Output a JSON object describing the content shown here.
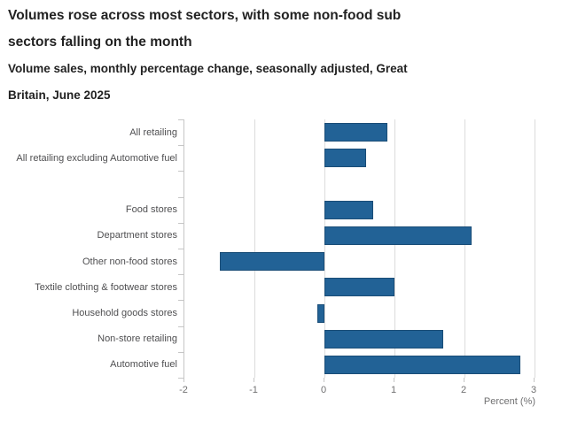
{
  "header": {
    "title_lines": [
      "Volumes rose across most sectors, with some non-food sub",
      "sectors falling on the month"
    ],
    "subtitle_lines": [
      "Volume sales, monthly percentage change, seasonally adjusted, Great",
      "Britain, June 2025"
    ]
  },
  "chart_data": {
    "type": "bar",
    "orientation": "horizontal",
    "title": "Volumes rose across most sectors, with some non-food sub sectors falling on the month",
    "subtitle": "Volume sales, monthly percentage change, seasonally adjusted, Great Britain, June 2025",
    "xlabel": "Percent (%)",
    "xlim": [
      -2,
      3
    ],
    "xticks": [
      -2,
      -1,
      0,
      1,
      2,
      3
    ],
    "xtick_labels": [
      "-2",
      "-1",
      "0",
      "1",
      "2",
      "3"
    ],
    "categories": [
      "All retailing",
      "All retailing excluding Automotive fuel",
      "",
      "Food stores",
      "Department stores",
      "Other non-food stores",
      "Textile clothing & footwear stores",
      "Household goods stores",
      "Non-store retailing",
      "Automotive fuel"
    ],
    "values": [
      0.9,
      0.6,
      null,
      0.7,
      2.1,
      -1.5,
      1.0,
      -0.1,
      1.7,
      2.8
    ],
    "grid": true,
    "legend": false,
    "colors": {
      "bar": "#226296",
      "bar_border": "#1a4d77",
      "gridline": "#dcdcdc",
      "axis": "#c6c6c6",
      "tick_label": "#707071",
      "category_label": "#4f4f51",
      "title": "#222222"
    }
  }
}
